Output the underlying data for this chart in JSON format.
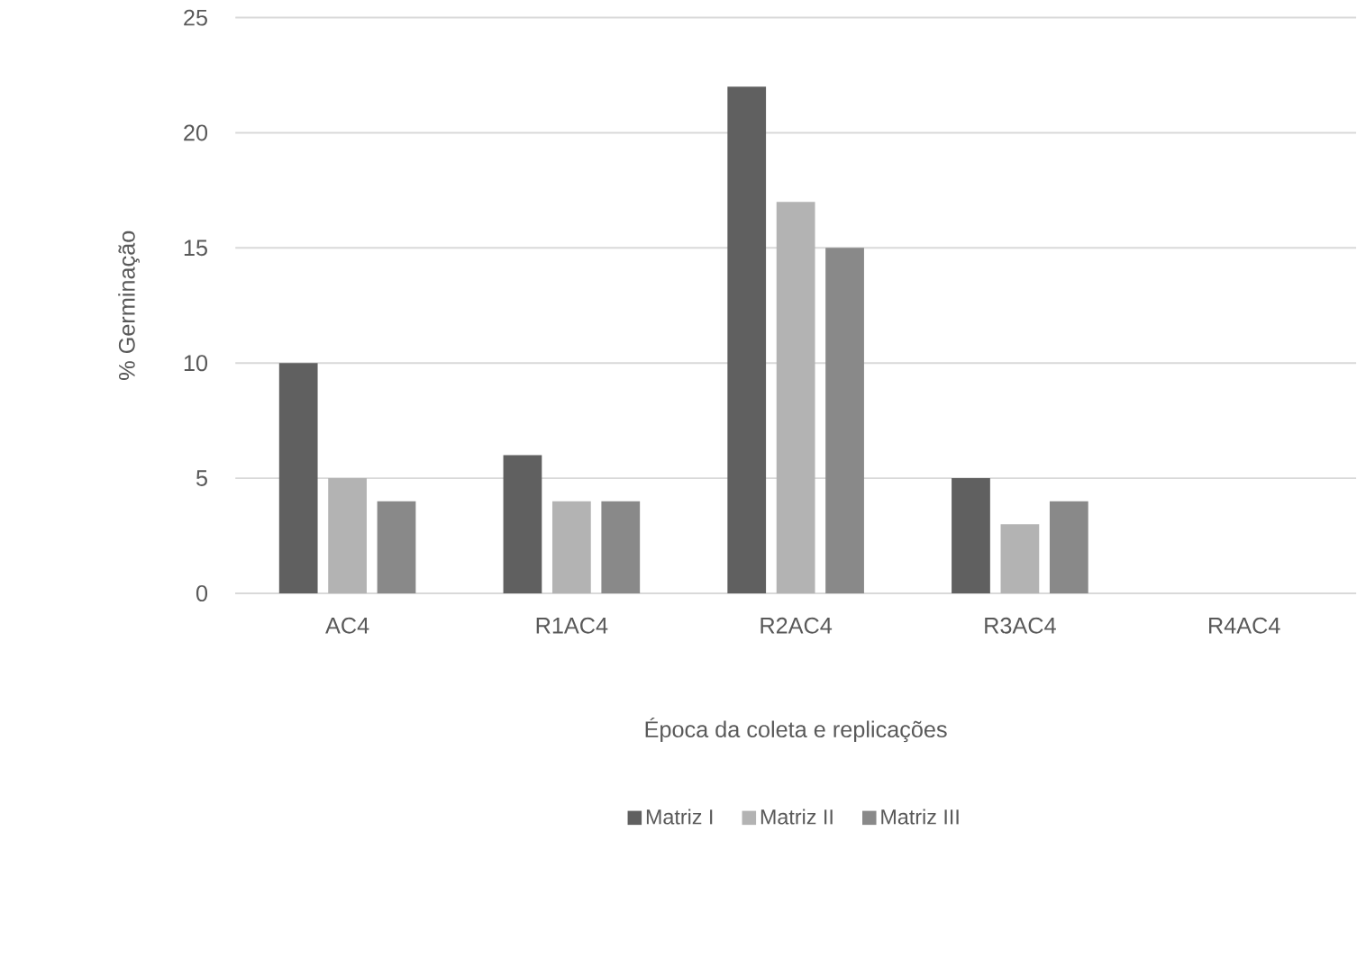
{
  "chart_data": {
    "type": "bar",
    "xlabel": "Época da coleta e replicações",
    "ylabel": "% Germinação",
    "categories": [
      "AC4",
      "R1AC4",
      "R2AC4",
      "R3AC4",
      "R4AC4"
    ],
    "series": [
      {
        "name": "Matriz I",
        "color": "#606060",
        "values": [
          10,
          6,
          22,
          5,
          0
        ]
      },
      {
        "name": "Matriz II",
        "color": "#b3b3b3",
        "values": [
          5,
          4,
          17,
          3,
          0
        ]
      },
      {
        "name": "Matriz III",
        "color": "#898989",
        "values": [
          4,
          4,
          15,
          4,
          0
        ]
      }
    ],
    "ylim": [
      0,
      25
    ],
    "yticks": [
      0,
      5,
      10,
      15,
      20,
      25
    ],
    "grid": "y",
    "legend": "bottom"
  }
}
